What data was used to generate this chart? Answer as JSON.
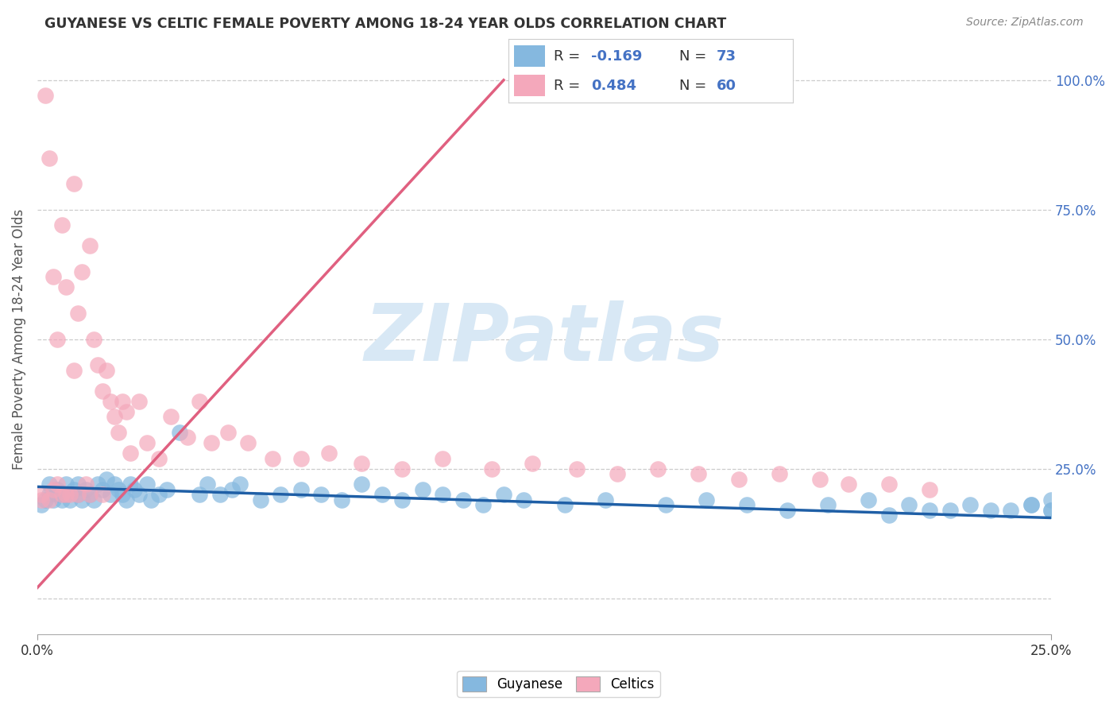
{
  "title": "GUYANESE VS CELTIC FEMALE POVERTY AMONG 18-24 YEAR OLDS CORRELATION CHART",
  "source": "Source: ZipAtlas.com",
  "xlim": [
    0.0,
    0.25
  ],
  "ylim": [
    -0.07,
    1.07
  ],
  "ytick_vals": [
    0.0,
    0.25,
    0.5,
    0.75,
    1.0
  ],
  "ylabel": "Female Poverty Among 18-24 Year Olds",
  "blue_color": "#85b8df",
  "pink_color": "#f4a8bb",
  "trend_blue": "#1f5fa6",
  "trend_pink": "#e06080",
  "watermark": "ZIPatlas",
  "watermark_color": "#d8e8f5",
  "legend_r1": "-0.169",
  "legend_n1": "73",
  "legend_r2": "0.484",
  "legend_n2": "60",
  "blue_x": [
    0.001,
    0.002,
    0.003,
    0.003,
    0.004,
    0.005,
    0.005,
    0.006,
    0.007,
    0.007,
    0.008,
    0.009,
    0.01,
    0.01,
    0.011,
    0.012,
    0.013,
    0.014,
    0.015,
    0.016,
    0.017,
    0.018,
    0.019,
    0.02,
    0.021,
    0.022,
    0.023,
    0.024,
    0.025,
    0.027,
    0.028,
    0.03,
    0.032,
    0.035,
    0.04,
    0.042,
    0.045,
    0.048,
    0.05,
    0.055,
    0.06,
    0.065,
    0.07,
    0.075,
    0.08,
    0.085,
    0.09,
    0.095,
    0.1,
    0.105,
    0.11,
    0.115,
    0.12,
    0.13,
    0.14,
    0.155,
    0.165,
    0.175,
    0.185,
    0.195,
    0.205,
    0.215,
    0.225,
    0.235,
    0.245,
    0.25,
    0.25,
    0.25,
    0.245,
    0.24,
    0.23,
    0.22,
    0.21
  ],
  "blue_y": [
    0.18,
    0.19,
    0.2,
    0.22,
    0.19,
    0.2,
    0.21,
    0.19,
    0.2,
    0.22,
    0.19,
    0.21,
    0.2,
    0.22,
    0.19,
    0.21,
    0.2,
    0.19,
    0.22,
    0.21,
    0.23,
    0.2,
    0.22,
    0.21,
    0.2,
    0.19,
    0.22,
    0.21,
    0.2,
    0.22,
    0.19,
    0.2,
    0.21,
    0.32,
    0.2,
    0.22,
    0.2,
    0.21,
    0.22,
    0.19,
    0.2,
    0.21,
    0.2,
    0.19,
    0.22,
    0.2,
    0.19,
    0.21,
    0.2,
    0.19,
    0.18,
    0.2,
    0.19,
    0.18,
    0.19,
    0.18,
    0.19,
    0.18,
    0.17,
    0.18,
    0.19,
    0.18,
    0.17,
    0.17,
    0.18,
    0.17,
    0.19,
    0.17,
    0.18,
    0.17,
    0.18,
    0.17,
    0.16
  ],
  "pink_x": [
    0.001,
    0.001,
    0.002,
    0.003,
    0.003,
    0.004,
    0.004,
    0.005,
    0.005,
    0.006,
    0.006,
    0.007,
    0.007,
    0.008,
    0.009,
    0.009,
    0.01,
    0.01,
    0.011,
    0.012,
    0.013,
    0.013,
    0.014,
    0.015,
    0.016,
    0.016,
    0.017,
    0.018,
    0.019,
    0.02,
    0.021,
    0.022,
    0.023,
    0.025,
    0.027,
    0.03,
    0.033,
    0.037,
    0.04,
    0.043,
    0.047,
    0.052,
    0.058,
    0.065,
    0.072,
    0.08,
    0.09,
    0.1,
    0.112,
    0.122,
    0.133,
    0.143,
    0.153,
    0.163,
    0.173,
    0.183,
    0.193,
    0.2,
    0.21,
    0.22
  ],
  "pink_y": [
    0.2,
    0.19,
    0.97,
    0.19,
    0.85,
    0.21,
    0.62,
    0.22,
    0.5,
    0.2,
    0.72,
    0.6,
    0.2,
    0.2,
    0.44,
    0.8,
    0.55,
    0.2,
    0.63,
    0.22,
    0.68,
    0.2,
    0.5,
    0.45,
    0.4,
    0.2,
    0.44,
    0.38,
    0.35,
    0.32,
    0.38,
    0.36,
    0.28,
    0.38,
    0.3,
    0.27,
    0.35,
    0.31,
    0.38,
    0.3,
    0.32,
    0.3,
    0.27,
    0.27,
    0.28,
    0.26,
    0.25,
    0.27,
    0.25,
    0.26,
    0.25,
    0.24,
    0.25,
    0.24,
    0.23,
    0.24,
    0.23,
    0.22,
    0.22,
    0.21
  ],
  "blue_trend_x": [
    0.0,
    0.25
  ],
  "blue_trend_y": [
    0.215,
    0.155
  ],
  "pink_trend_x": [
    0.0,
    0.115
  ],
  "pink_trend_y": [
    0.02,
    1.0
  ]
}
